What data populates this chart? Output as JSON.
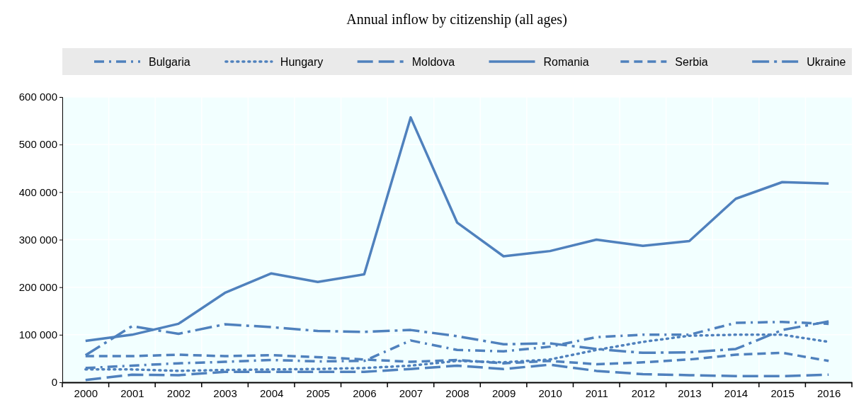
{
  "chart_data": {
    "type": "line",
    "title": "Annual inflow by citizenship (all ages)",
    "categories": [
      "2000",
      "2001",
      "2002",
      "2003",
      "2004",
      "2005",
      "2006",
      "2007",
      "2008",
      "2009",
      "2010",
      "2011",
      "2012",
      "2013",
      "2014",
      "2015",
      "2016"
    ],
    "series": [
      {
        "name": "Bulgaria",
        "color": "#4f81bd",
        "line_style": "dashed",
        "values": [
          30000,
          35000,
          40000,
          43000,
          47000,
          44000,
          45000,
          88000,
          68000,
          65000,
          75000,
          95000,
          100000,
          100000,
          125000,
          127000,
          123000
        ]
      },
      {
        "name": "Hungary",
        "color": "#4f81bd",
        "line_style": "dotted",
        "values": [
          27000,
          27000,
          24000,
          26000,
          27000,
          28000,
          30000,
          35000,
          45000,
          42000,
          48000,
          68000,
          85000,
          98000,
          100000,
          100000,
          85000
        ]
      },
      {
        "name": "Moldova",
        "color": "#4f81bd",
        "line_style": "dashed",
        "values": [
          5000,
          16000,
          15000,
          22000,
          22000,
          22000,
          22000,
          28000,
          35000,
          28000,
          37000,
          24000,
          17000,
          15000,
          13000,
          13000,
          16000
        ]
      },
      {
        "name": "Romania",
        "color": "#4f81bd",
        "line_style": "solid",
        "values": [
          87000,
          100000,
          123000,
          188000,
          229000,
          211000,
          227000,
          557000,
          336000,
          265000,
          276000,
          300000,
          287000,
          297000,
          386000,
          421000,
          418000
        ]
      },
      {
        "name": "Serbia",
        "color": "#4f81bd",
        "line_style": "dashed",
        "values": [
          55000,
          55000,
          58000,
          55000,
          57000,
          53000,
          48000,
          43000,
          47000,
          40000,
          45000,
          38000,
          42000,
          48000,
          58000,
          62000,
          45000
        ]
      },
      {
        "name": "Ukraine",
        "color": "#4f81bd",
        "line_style": "dashed",
        "values": [
          57000,
          118000,
          102000,
          122000,
          116000,
          108000,
          106000,
          110000,
          97000,
          80000,
          82000,
          70000,
          62000,
          63000,
          70000,
          110000,
          128000
        ]
      }
    ],
    "ylim": [
      0,
      600000
    ],
    "yticks": [
      {
        "value": 0,
        "label": "0"
      },
      {
        "value": 100000,
        "label": "100 000"
      },
      {
        "value": 200000,
        "label": "200 000"
      },
      {
        "value": 300000,
        "label": "300 000"
      },
      {
        "value": 400000,
        "label": "400 000"
      },
      {
        "value": 500000,
        "label": "500 000"
      },
      {
        "value": 600000,
        "label": "600 000"
      }
    ],
    "grid": true,
    "legend": "top"
  }
}
